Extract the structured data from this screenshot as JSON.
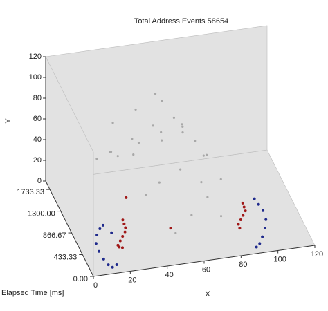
{
  "chart_data": {
    "type": "scatter3d",
    "title": "Total Address Events 58654",
    "xlabel": "X",
    "ylabel": "Y",
    "zlabel": "Elapsed Time [ms]",
    "xlim": [
      0,
      120
    ],
    "xticks": [
      0,
      20,
      40,
      60,
      80,
      100,
      120
    ],
    "ylim": [
      0,
      120
    ],
    "yticks": [
      0,
      20,
      40,
      60,
      80,
      100,
      120
    ],
    "zlim": [
      0,
      1900
    ],
    "zticks": [
      {
        "value": 0,
        "label": "0.00"
      },
      433.33,
      866.67,
      {
        "value": 1300,
        "label": "1300.00"
      },
      1733.33
    ],
    "series": [
      {
        "color": "#a8a8a8",
        "x": [
          30,
          40,
          50,
          60,
          70,
          35,
          45,
          55,
          65,
          75,
          25,
          38,
          52,
          62,
          72,
          48,
          58,
          68,
          42,
          80,
          33,
          57,
          66,
          44,
          54,
          70,
          28,
          60,
          50,
          76
        ],
        "y": [
          40,
          55,
          70,
          80,
          60,
          30,
          45,
          60,
          70,
          50,
          25,
          50,
          65,
          75,
          55,
          35,
          50,
          40,
          20,
          35,
          60,
          85,
          65,
          75,
          90,
          30,
          45,
          20,
          10,
          15
        ],
        "z": [
          1500,
          1400,
          1300,
          1200,
          1100,
          1600,
          1500,
          1350,
          1250,
          1000,
          1700,
          1200,
          1100,
          1000,
          900,
          900,
          800,
          700,
          1000,
          800,
          1650,
          1450,
          1300,
          1550,
          1500,
          600,
          1400,
          500,
          400,
          500
        ]
      },
      {
        "color": "#a01818",
        "x": [
          20,
          21,
          22,
          22,
          21,
          20,
          19,
          20,
          22,
          85,
          86,
          87,
          86,
          85,
          84,
          85,
          30,
          50
        ],
        "y": [
          35,
          30,
          25,
          20,
          15,
          10,
          5,
          2,
          0,
          35,
          30,
          25,
          20,
          15,
          10,
          5,
          25,
          5
        ],
        "z": [
          300,
          320,
          340,
          360,
          380,
          400,
          420,
          440,
          460,
          300,
          320,
          340,
          360,
          380,
          400,
          420,
          900,
          600
        ]
      },
      {
        "color": "#1f2a8c",
        "x": [
          10,
          8,
          6,
          5,
          6,
          8,
          10,
          12,
          14,
          15,
          92,
          94,
          96,
          97,
          96,
          94,
          92,
          90
        ],
        "y": [
          30,
          28,
          24,
          18,
          12,
          6,
          2,
          0,
          3,
          20,
          35,
          30,
          25,
          18,
          12,
          6,
          2,
          0
        ],
        "z": [
          350,
          330,
          300,
          260,
          220,
          180,
          140,
          120,
          100,
          380,
          350,
          330,
          300,
          260,
          220,
          180,
          140,
          120
        ]
      }
    ]
  }
}
